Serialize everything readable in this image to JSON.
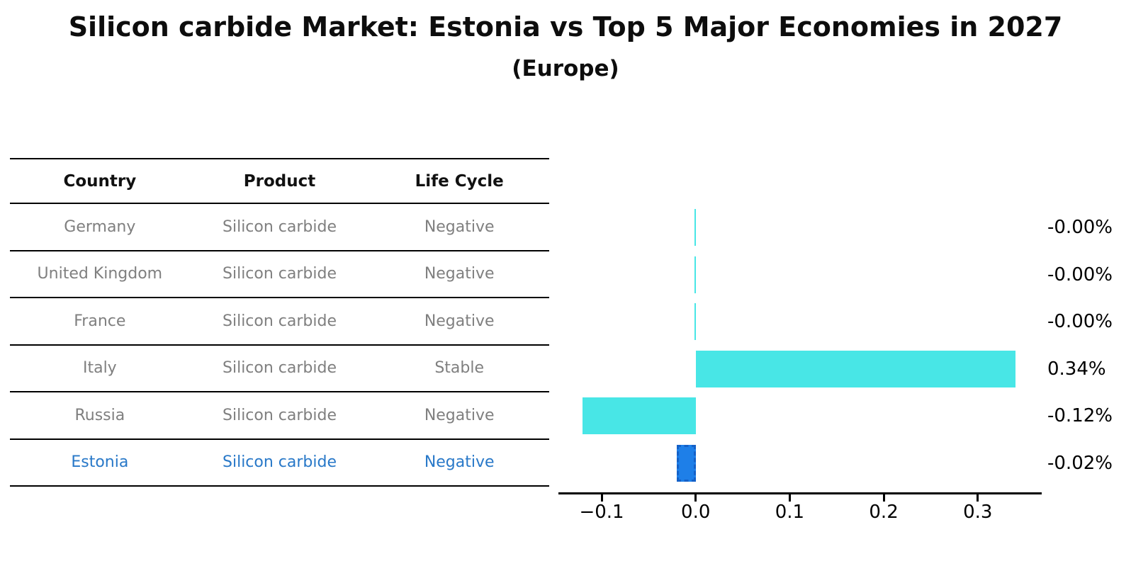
{
  "title": "Silicon carbide Market: Estonia vs Top 5 Major Economies in 2027",
  "subtitle": "(Europe)",
  "table": {
    "headers": [
      "Country",
      "Product",
      "Life Cycle"
    ],
    "rows": [
      {
        "country": "Germany",
        "product": "Silicon carbide",
        "life_cycle": "Negative",
        "highlight": false
      },
      {
        "country": "United Kingdom",
        "product": "Silicon carbide",
        "life_cycle": "Negative",
        "highlight": false
      },
      {
        "country": "France",
        "product": "Silicon carbide",
        "life_cycle": "Negative",
        "highlight": false
      },
      {
        "country": "Italy",
        "product": "Silicon carbide",
        "life_cycle": "Stable",
        "highlight": false
      },
      {
        "country": "Russia",
        "product": "Silicon carbide",
        "life_cycle": "Negative",
        "highlight": false
      },
      {
        "country": "Estonia",
        "product": "Silicon carbide",
        "life_cycle": "Negative",
        "highlight": true
      }
    ]
  },
  "chart_data": {
    "type": "bar",
    "orientation": "horizontal",
    "categories": [
      "Germany",
      "United Kingdom",
      "France",
      "Italy",
      "Russia",
      "Estonia"
    ],
    "values": [
      -0.0015,
      -0.0015,
      -0.0015,
      0.34,
      -0.12,
      -0.02
    ],
    "value_labels": [
      "-0.00%",
      "-0.00%",
      "-0.00%",
      "0.34%",
      "-0.12%",
      "-0.02%"
    ],
    "x_ticks": [
      -0.1,
      0.0,
      0.1,
      0.2,
      0.3
    ],
    "x_tick_labels": [
      "−0.1",
      "0.0",
      "0.1",
      "0.2",
      "0.3"
    ],
    "xlim": [
      -0.146,
      0.368
    ],
    "grid": false,
    "legend": "none",
    "bar_color": "#48E6E6",
    "highlight_bar_color": "#1E7FE8",
    "highlight_index": 5,
    "value_label_color": "#000000",
    "highlight_text_color": "#2878C8"
  }
}
